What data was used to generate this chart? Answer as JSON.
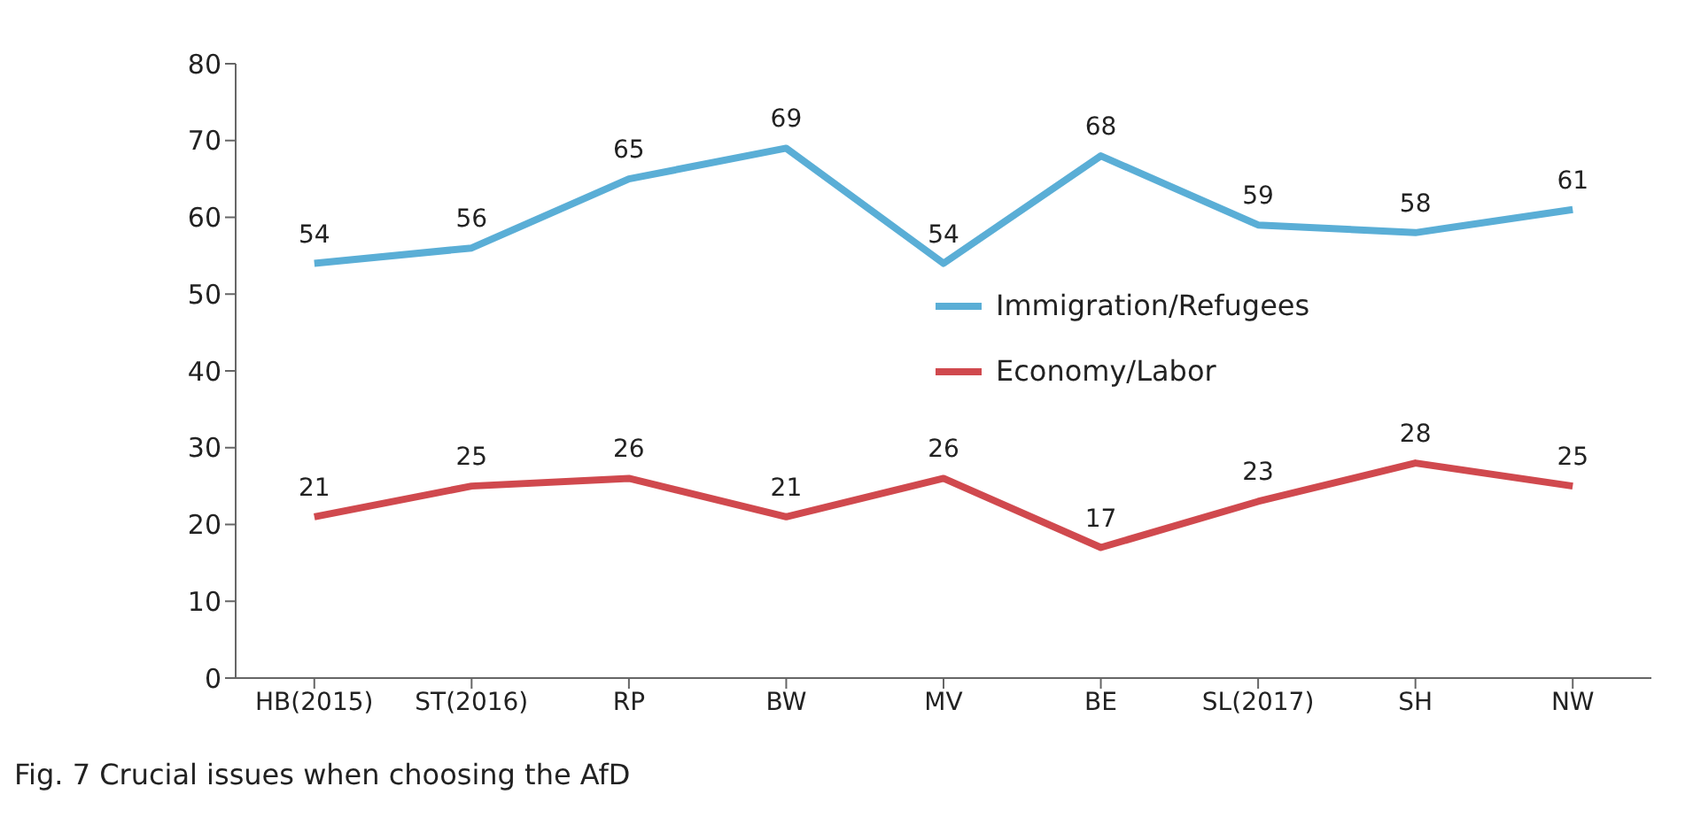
{
  "chart_data": {
    "type": "line",
    "categories": [
      "HB(2015)",
      "ST(2016)",
      "RP",
      "BW",
      "MV",
      "BE",
      "SL(2017)",
      "SH",
      "NW"
    ],
    "series": [
      {
        "name": "Immigration/Refugees",
        "color": "#5aaed6",
        "values": [
          54,
          56,
          65,
          69,
          54,
          68,
          59,
          58,
          61
        ]
      },
      {
        "name": "Economy/Labor",
        "color": "#d0494e",
        "values": [
          21,
          25,
          26,
          21,
          26,
          17,
          23,
          28,
          25
        ]
      }
    ],
    "ylim": [
      0,
      80
    ],
    "yticks": [
      0,
      10,
      20,
      30,
      40,
      50,
      60,
      70,
      80
    ],
    "grid": false,
    "legend": "right",
    "marker": "none",
    "line_style": "solid",
    "data_labels": true,
    "annotations": [
      "Fig. 7 Crucial issues when choosing the AfD"
    ]
  }
}
